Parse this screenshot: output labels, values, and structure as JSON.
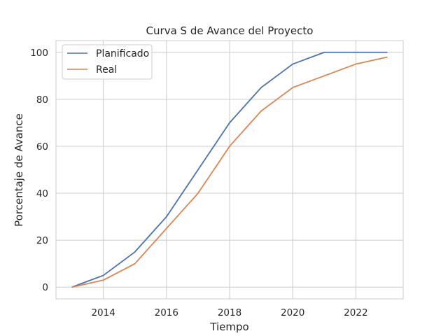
{
  "chart_data": {
    "type": "line",
    "title": "Curva S de Avance del Proyecto",
    "xlabel": "Tiempo",
    "ylabel": "Porcentaje de Avance",
    "x": [
      2013,
      2014,
      2015,
      2016,
      2017,
      2018,
      2019,
      2020,
      2021,
      2022,
      2023
    ],
    "xlim": [
      2012.5,
      2023.5
    ],
    "ylim": [
      -5,
      105
    ],
    "xticks": [
      2014,
      2016,
      2018,
      2020,
      2022
    ],
    "yticks": [
      0,
      20,
      40,
      60,
      80,
      100
    ],
    "grid": true,
    "legend_position": "top-left",
    "series": [
      {
        "name": "Planificado",
        "color": "#4c72b0",
        "values": [
          0,
          5,
          15,
          30,
          50,
          70,
          85,
          95,
          100,
          100,
          100
        ]
      },
      {
        "name": "Real",
        "color": "#dd8452",
        "values": [
          0,
          3,
          10,
          25,
          40,
          60,
          75,
          85,
          90,
          95,
          98
        ]
      }
    ]
  }
}
